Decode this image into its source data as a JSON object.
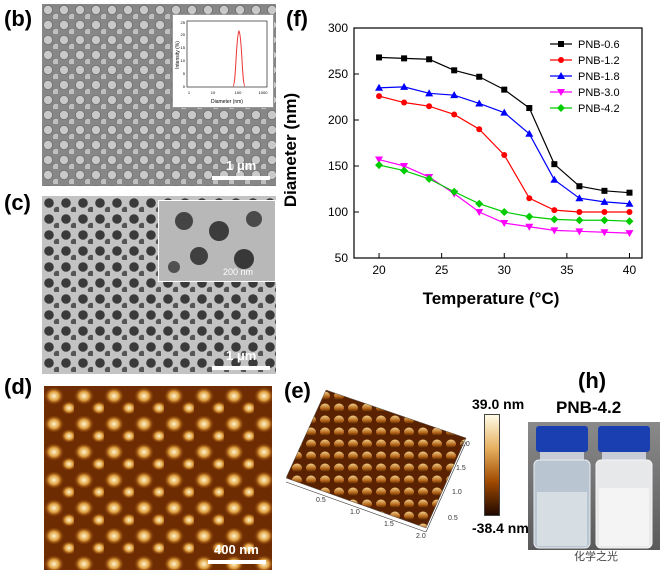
{
  "panels": {
    "b": {
      "label": "(b)",
      "scale": "1 μm",
      "inset": {
        "xlabel": "Diameter (nm)",
        "ylabel": "Intensity (%)",
        "yticks": [
          "0",
          "5",
          "10",
          "15",
          "20",
          "25"
        ],
        "xticks": [
          "1",
          "10",
          "100",
          "1000"
        ]
      }
    },
    "c": {
      "label": "(c)",
      "scale": "1 μm",
      "inset_scale": "200 nm"
    },
    "d": {
      "label": "(d)",
      "scale": "400 nm"
    },
    "e": {
      "label": "(e)",
      "colorbar_max": "39.0 nm",
      "colorbar_min": "-38.4 nm",
      "axis_ticks_x": [
        "0.5",
        "1.0",
        "1.5",
        "2.0"
      ],
      "axis_ticks_y": [
        "0.5",
        "1.0",
        "1.5",
        "2.0"
      ]
    },
    "f": {
      "label": "(f)"
    },
    "h": {
      "label": "(h)",
      "sample": "PNB-4.2"
    }
  },
  "watermark": "化学之光",
  "chart_data": {
    "type": "line",
    "xlabel": "Temperature (°C)",
    "ylabel": "Diameter (nm)",
    "xlim": [
      18,
      41
    ],
    "ylim": [
      50,
      300
    ],
    "xticks": [
      20,
      25,
      30,
      35,
      40
    ],
    "yticks": [
      50,
      100,
      150,
      200,
      250,
      300
    ],
    "x": [
      20,
      22,
      24,
      26,
      28,
      30,
      32,
      34,
      36,
      38,
      40
    ],
    "legend_position": "top-right",
    "series": [
      {
        "name": "PNB-0.6",
        "color": "#000000",
        "marker": "square",
        "values": [
          268,
          267,
          266,
          254,
          247,
          233,
          213,
          152,
          128,
          123,
          121
        ]
      },
      {
        "name": "PNB-1.2",
        "color": "#ff0000",
        "marker": "circle",
        "values": [
          226,
          219,
          215,
          206,
          190,
          162,
          115,
          102,
          100,
          100,
          100
        ]
      },
      {
        "name": "PNB-1.8",
        "color": "#0000ff",
        "marker": "triangle-up",
        "values": [
          235,
          236,
          229,
          227,
          218,
          208,
          185,
          135,
          115,
          111,
          109
        ]
      },
      {
        "name": "PNB-3.0",
        "color": "#ff00ff",
        "marker": "triangle-down",
        "values": [
          157,
          150,
          138,
          120,
          100,
          88,
          84,
          80,
          79,
          78,
          77
        ]
      },
      {
        "name": "PNB-4.2",
        "color": "#00cc00",
        "marker": "diamond",
        "values": [
          151,
          145,
          136,
          122,
          109,
          100,
          95,
          92,
          91,
          91,
          90
        ]
      }
    ]
  }
}
